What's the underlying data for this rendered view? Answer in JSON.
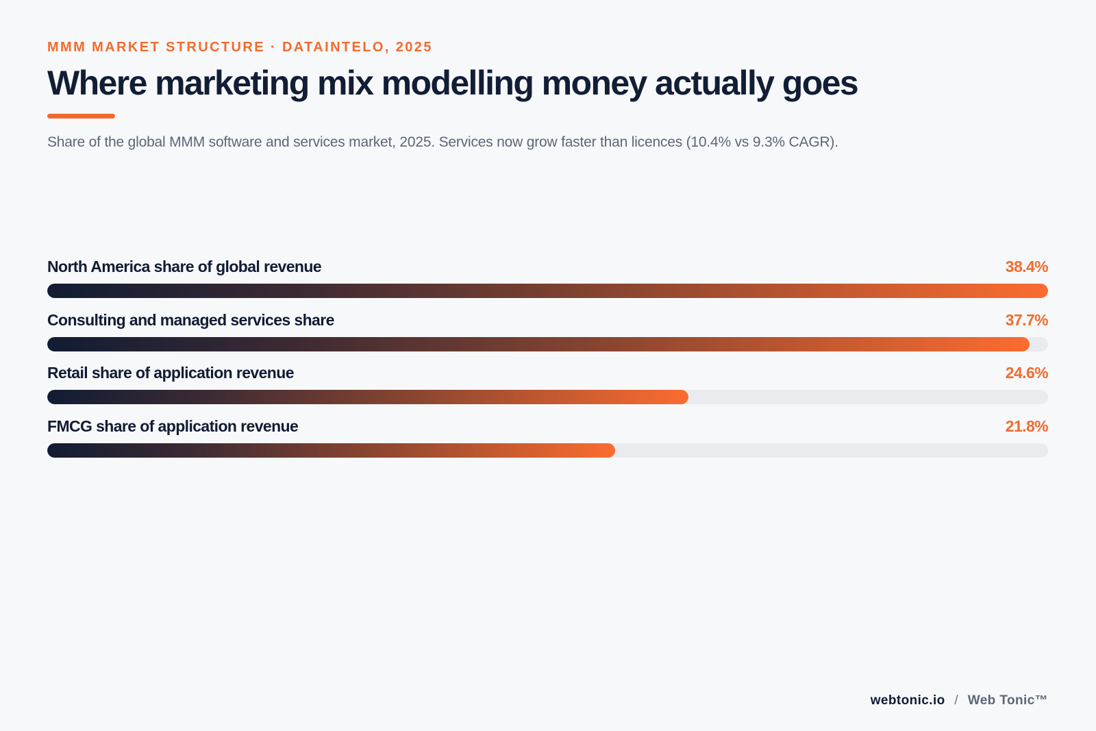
{
  "eyebrow": "MMM MARKET STRUCTURE · DATAINTELO, 2025",
  "title": "Where marketing mix modelling money actually goes",
  "subtitle": "Share of the global MMM software and services market, 2025. Services now grow faster than licences (10.4% vs 9.3% CAGR).",
  "colors": {
    "accent": "#f26b2e",
    "ink": "#121d36",
    "track": "#e9ebef"
  },
  "chart_data": {
    "type": "bar",
    "orientation": "horizontal",
    "scale_max": 38.4,
    "categories": [
      "North America share of global revenue",
      "Consulting and managed services share",
      "Retail share of application revenue",
      "FMCG share of application revenue"
    ],
    "values": [
      38.4,
      37.7,
      24.6,
      21.8
    ],
    "value_labels": [
      "38.4%",
      "37.7%",
      "24.6%",
      "21.8%"
    ],
    "grid": false,
    "legend": "none"
  },
  "footer": {
    "domain": "webtonic.io",
    "separator": "/",
    "brand": "Web Tonic™"
  }
}
